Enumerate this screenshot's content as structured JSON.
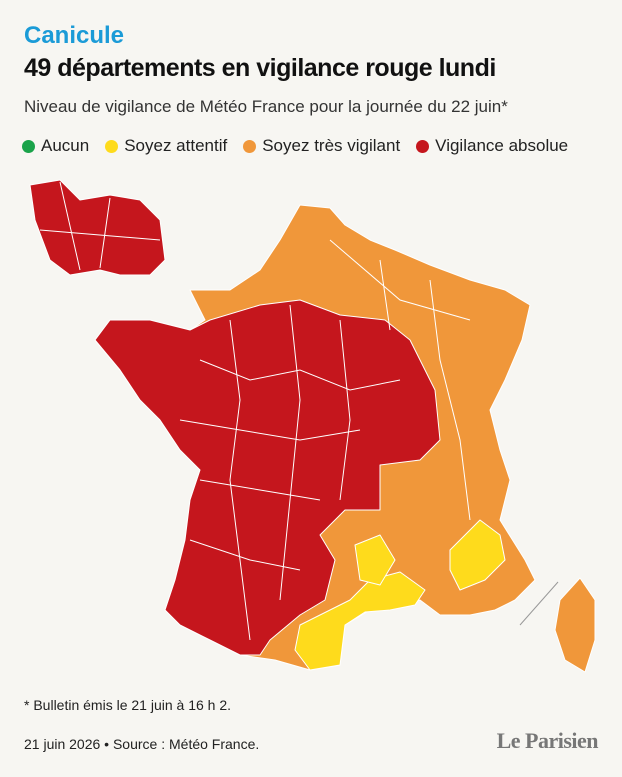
{
  "header": {
    "kicker": "Canicule",
    "title": "49 départements en vigilance rouge lundi",
    "subtitle": "Niveau de vigilance de Météo France pour la journée du 22 juin*"
  },
  "legend": {
    "items": [
      {
        "label": "Aucun",
        "color": "#1aa34a"
      },
      {
        "label": "Soyez attentif",
        "color": "#fedb1c"
      },
      {
        "label": "Soyez très vigilant",
        "color": "#f0973a"
      },
      {
        "label": "Vigilance absolue",
        "color": "#c5161d"
      }
    ]
  },
  "footer": {
    "note": "* Bulletin émis le 21 juin à 16 h 2.",
    "source": "21 juin 2026 • Source : Météo France.",
    "logo": "Le Parisien"
  }
}
